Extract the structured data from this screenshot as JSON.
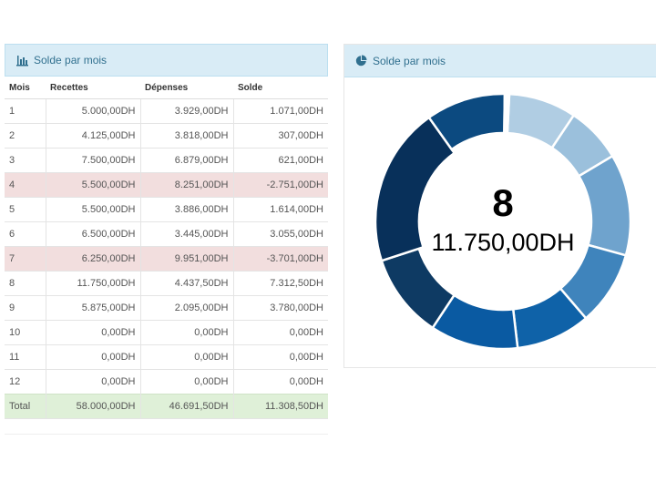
{
  "left_panel": {
    "title": "Solde par mois"
  },
  "right_panel": {
    "title": "Solde par mois"
  },
  "table": {
    "headers": [
      "Mois",
      "Recettes",
      "Dépenses",
      "Solde"
    ],
    "rows": [
      {
        "mois": "1",
        "recettes": "5.000,00DH",
        "depenses": "3.929,00DH",
        "solde": "1.071,00DH",
        "negative": false
      },
      {
        "mois": "2",
        "recettes": "4.125,00DH",
        "depenses": "3.818,00DH",
        "solde": "307,00DH",
        "negative": false
      },
      {
        "mois": "3",
        "recettes": "7.500,00DH",
        "depenses": "6.879,00DH",
        "solde": "621,00DH",
        "negative": false
      },
      {
        "mois": "4",
        "recettes": "5.500,00DH",
        "depenses": "8.251,00DH",
        "solde": "-2.751,00DH",
        "negative": true
      },
      {
        "mois": "5",
        "recettes": "5.500,00DH",
        "depenses": "3.886,00DH",
        "solde": "1.614,00DH",
        "negative": false
      },
      {
        "mois": "6",
        "recettes": "6.500,00DH",
        "depenses": "3.445,00DH",
        "solde": "3.055,00DH",
        "negative": false
      },
      {
        "mois": "7",
        "recettes": "6.250,00DH",
        "depenses": "9.951,00DH",
        "solde": "-3.701,00DH",
        "negative": true
      },
      {
        "mois": "8",
        "recettes": "11.750,00DH",
        "depenses": "4.437,50DH",
        "solde": "7.312,50DH",
        "negative": false
      },
      {
        "mois": "9",
        "recettes": "5.875,00DH",
        "depenses": "2.095,00DH",
        "solde": "3.780,00DH",
        "negative": false
      },
      {
        "mois": "10",
        "recettes": "0,00DH",
        "depenses": "0,00DH",
        "solde": "0,00DH",
        "negative": false
      },
      {
        "mois": "11",
        "recettes": "0,00DH",
        "depenses": "0,00DH",
        "solde": "0,00DH",
        "negative": false
      },
      {
        "mois": "12",
        "recettes": "0,00DH",
        "depenses": "0,00DH",
        "solde": "0,00DH",
        "negative": false
      }
    ],
    "total": {
      "label": "Total",
      "recettes": "58.000,00DH",
      "depenses": "46.691,50DH",
      "solde": "11.308,50DH"
    }
  },
  "chart_data": {
    "type": "pie",
    "title": "Solde par mois",
    "categories": [
      "1",
      "2",
      "3",
      "4",
      "5",
      "6",
      "7",
      "8",
      "9",
      "10",
      "11",
      "12"
    ],
    "values": [
      5000,
      4125,
      7500,
      5500,
      5500,
      6500,
      6250,
      11750,
      5875,
      0,
      0,
      0
    ],
    "center_label": "8",
    "center_value": "11.750,00DH",
    "highlighted": "8",
    "colors": [
      "#b0cde3",
      "#9bc0dc",
      "#6fa3cd",
      "#3f84bc",
      "#0f62a8",
      "#0a5aa2",
      "#0e3a63",
      "#08305a",
      "#0c4a80",
      "#08306b",
      "#08306b",
      "#0b5592"
    ]
  }
}
